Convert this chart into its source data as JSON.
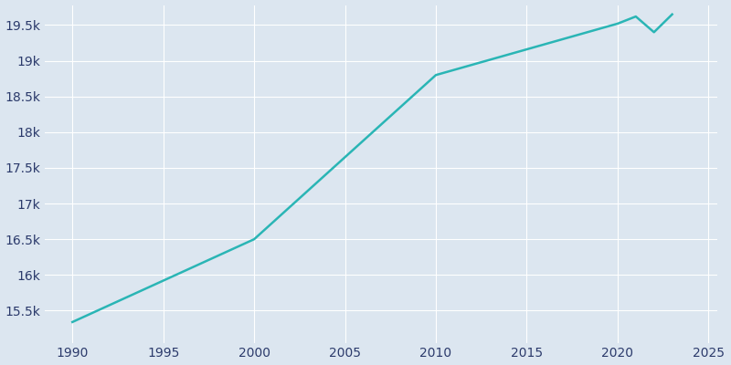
{
  "years": [
    1990,
    2000,
    2010,
    2020,
    2021,
    2022,
    2023
  ],
  "population": [
    15340,
    16500,
    18800,
    19520,
    19620,
    19400,
    19650
  ],
  "line_color": "#2ab5b5",
  "line_width": 1.8,
  "fig_background_color": "#dce6f0",
  "plot_background_color": "#dce6f0",
  "tick_label_color": "#2b3a6b",
  "grid_color": "#ffffff",
  "ylim": [
    15050,
    19780
  ],
  "xlim": [
    1988.5,
    2025.5
  ],
  "ytick_values": [
    15500,
    16000,
    16500,
    17000,
    17500,
    18000,
    18500,
    19000,
    19500
  ],
  "xtick_values": [
    1990,
    1995,
    2000,
    2005,
    2010,
    2015,
    2020,
    2025
  ],
  "figsize": [
    8.0,
    4.0
  ],
  "dpi": 100
}
